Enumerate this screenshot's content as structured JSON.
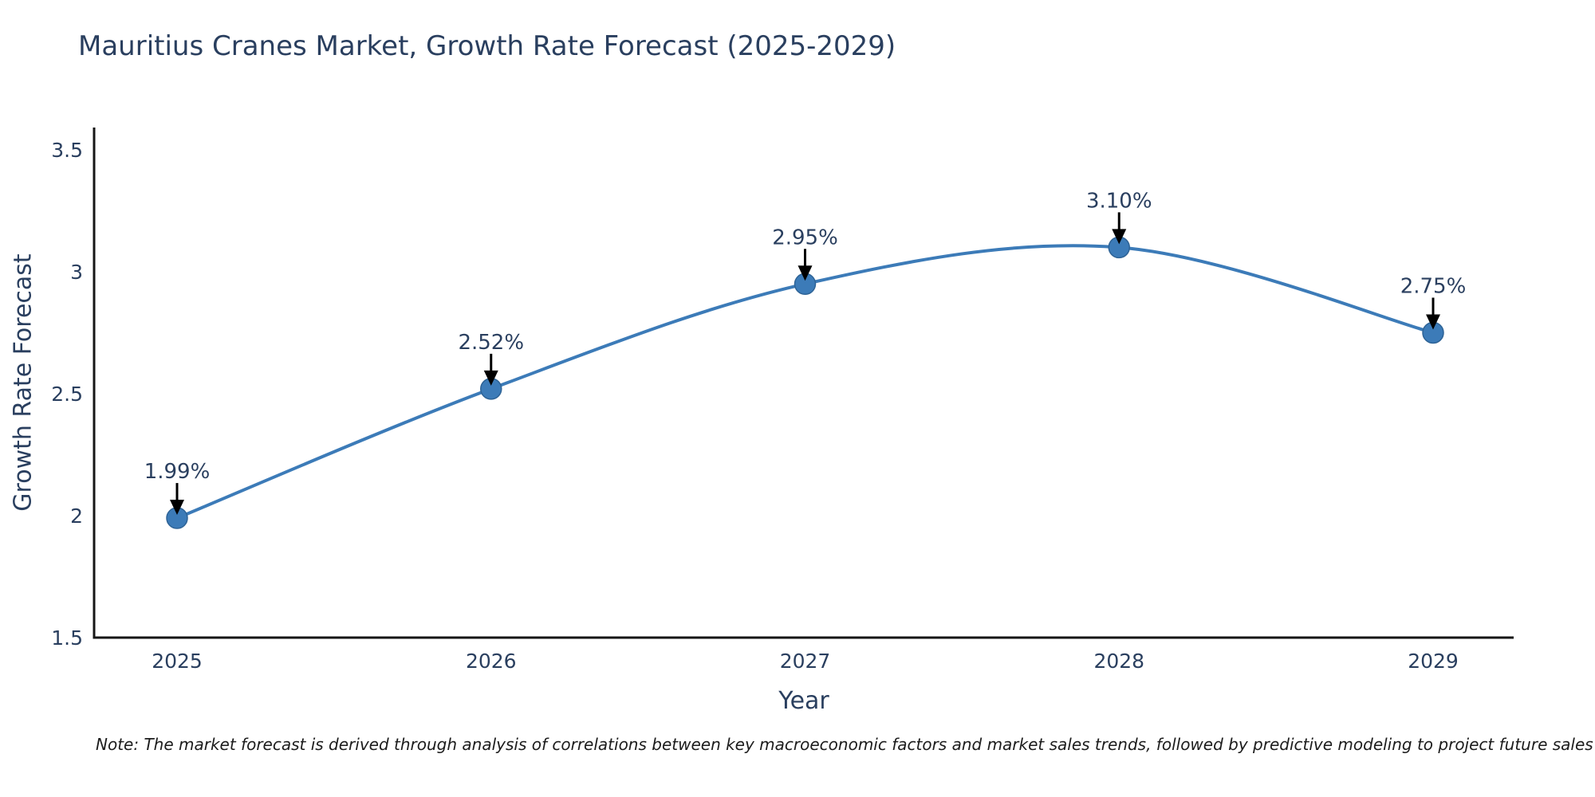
{
  "note": "Note: The market forecast is derived through analysis of correlations between key macroeconomic factors and market sales trends, followed by predictive modeling to project future sales",
  "colors": {
    "line": "#3c7bb8",
    "marker_fill": "#3c7bb8",
    "marker_edge": "#2e6396",
    "axis_line": "#161616",
    "text": "#2a3f5f",
    "annotation_text": "#2a3f5f",
    "arrow": "#000000",
    "background": "#ffffff"
  },
  "chart_data": {
    "type": "line",
    "title": "Mauritius Cranes Market, Growth Rate Forecast (2025-2029)",
    "xlabel": "Year",
    "ylabel": "Growth Rate Forecast",
    "x": [
      2025,
      2026,
      2027,
      2028,
      2029
    ],
    "values": [
      1.99,
      2.52,
      2.95,
      3.1,
      2.75
    ],
    "point_labels": [
      "1.99%",
      "2.52%",
      "2.95%",
      "3.10%",
      "2.75%"
    ],
    "xtick_labels": [
      "2025",
      "2026",
      "2027",
      "2028",
      "2029"
    ],
    "ytick_values": [
      1.5,
      2,
      2.5,
      3,
      3.5
    ],
    "ytick_labels": [
      "1.5",
      "2",
      "2.5",
      "3",
      "3.5"
    ],
    "ylim": [
      1.5,
      3.5
    ],
    "grid": false,
    "legend": "none",
    "line_shape": "spline",
    "annotations": "black down-arrows from percentage labels to markers"
  }
}
